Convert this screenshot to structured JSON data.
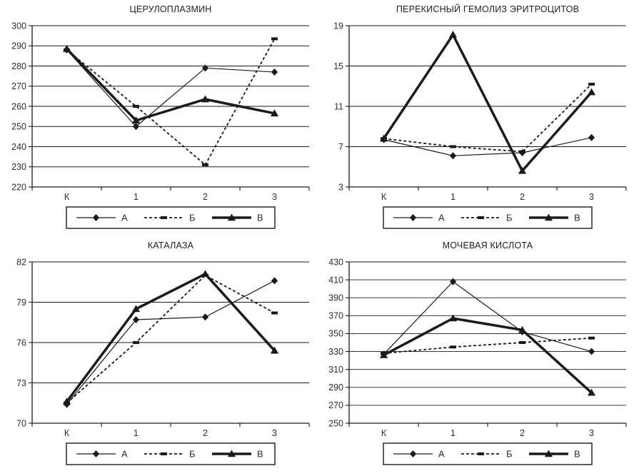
{
  "colors": {
    "ink": "#1a1a1a",
    "tick_label": "#2e2e2e",
    "title": "#1f1f1f",
    "background": "#ffffff"
  },
  "chart_data": [
    {
      "id": "ceruloplasmin",
      "type": "line",
      "title": "ЦЕРУЛОПЛАЗМИН",
      "categories": [
        "К",
        "1",
        "2",
        "3"
      ],
      "ylim": [
        220,
        300
      ],
      "y_step": 10,
      "grid": true,
      "legend_position": "bottom",
      "series": [
        {
          "name": "А",
          "marker": "diamond",
          "line": "thin",
          "values": [
            288,
            250,
            279,
            277
          ]
        },
        {
          "name": "Б",
          "marker": "dash",
          "line": "dashed",
          "values": [
            288,
            260,
            231,
            293.5
          ]
        },
        {
          "name": "В",
          "marker": "triangle",
          "line": "thick",
          "values": [
            288.5,
            253,
            263.5,
            256.5
          ]
        }
      ]
    },
    {
      "id": "peroxide-hemolysis",
      "type": "line",
      "title": "ПЕРЕКИСНЫЙ ГЕМОЛИЗ ЭРИТРОЦИТОВ",
      "categories": [
        "К",
        "1",
        "2",
        "3"
      ],
      "ylim": [
        3,
        19
      ],
      "y_step": 4,
      "grid": true,
      "legend_position": "bottom",
      "series": [
        {
          "name": "А",
          "marker": "diamond",
          "line": "thin",
          "values": [
            7.7,
            6.1,
            6.4,
            7.9
          ]
        },
        {
          "name": "Б",
          "marker": "dash",
          "line": "dashed",
          "values": [
            7.8,
            7.0,
            6.5,
            13.2
          ]
        },
        {
          "name": "В",
          "marker": "triangle",
          "line": "thick",
          "values": [
            7.8,
            18.1,
            4.6,
            12.4
          ]
        }
      ]
    },
    {
      "id": "catalase",
      "type": "line",
      "title": "КАТАЛАЗА",
      "categories": [
        "К",
        "1",
        "2",
        "3"
      ],
      "ylim": [
        70,
        82
      ],
      "y_step": 3,
      "grid": true,
      "legend_position": "bottom",
      "series": [
        {
          "name": "А",
          "marker": "diamond",
          "line": "thin",
          "values": [
            71.4,
            77.7,
            77.9,
            80.6
          ]
        },
        {
          "name": "Б",
          "marker": "dash",
          "line": "dashed",
          "values": [
            71.5,
            76.0,
            81.0,
            78.2
          ]
        },
        {
          "name": "В",
          "marker": "triangle",
          "line": "thick",
          "values": [
            71.6,
            78.5,
            81.1,
            75.4
          ]
        }
      ]
    },
    {
      "id": "uric-acid",
      "type": "line",
      "title": "МОЧЕВАЯ КИСЛОТА",
      "categories": [
        "К",
        "1",
        "2",
        "3"
      ],
      "ylim": [
        250,
        430
      ],
      "y_step": 20,
      "grid": true,
      "legend_position": "bottom",
      "series": [
        {
          "name": "А",
          "marker": "diamond",
          "line": "thin",
          "values": [
            327,
            408,
            352,
            330
          ]
        },
        {
          "name": "Б",
          "marker": "dash",
          "line": "dashed",
          "values": [
            328,
            335,
            340,
            345
          ]
        },
        {
          "name": "В",
          "marker": "triangle",
          "line": "thick",
          "values": [
            326,
            367,
            354,
            284
          ]
        }
      ]
    }
  ]
}
